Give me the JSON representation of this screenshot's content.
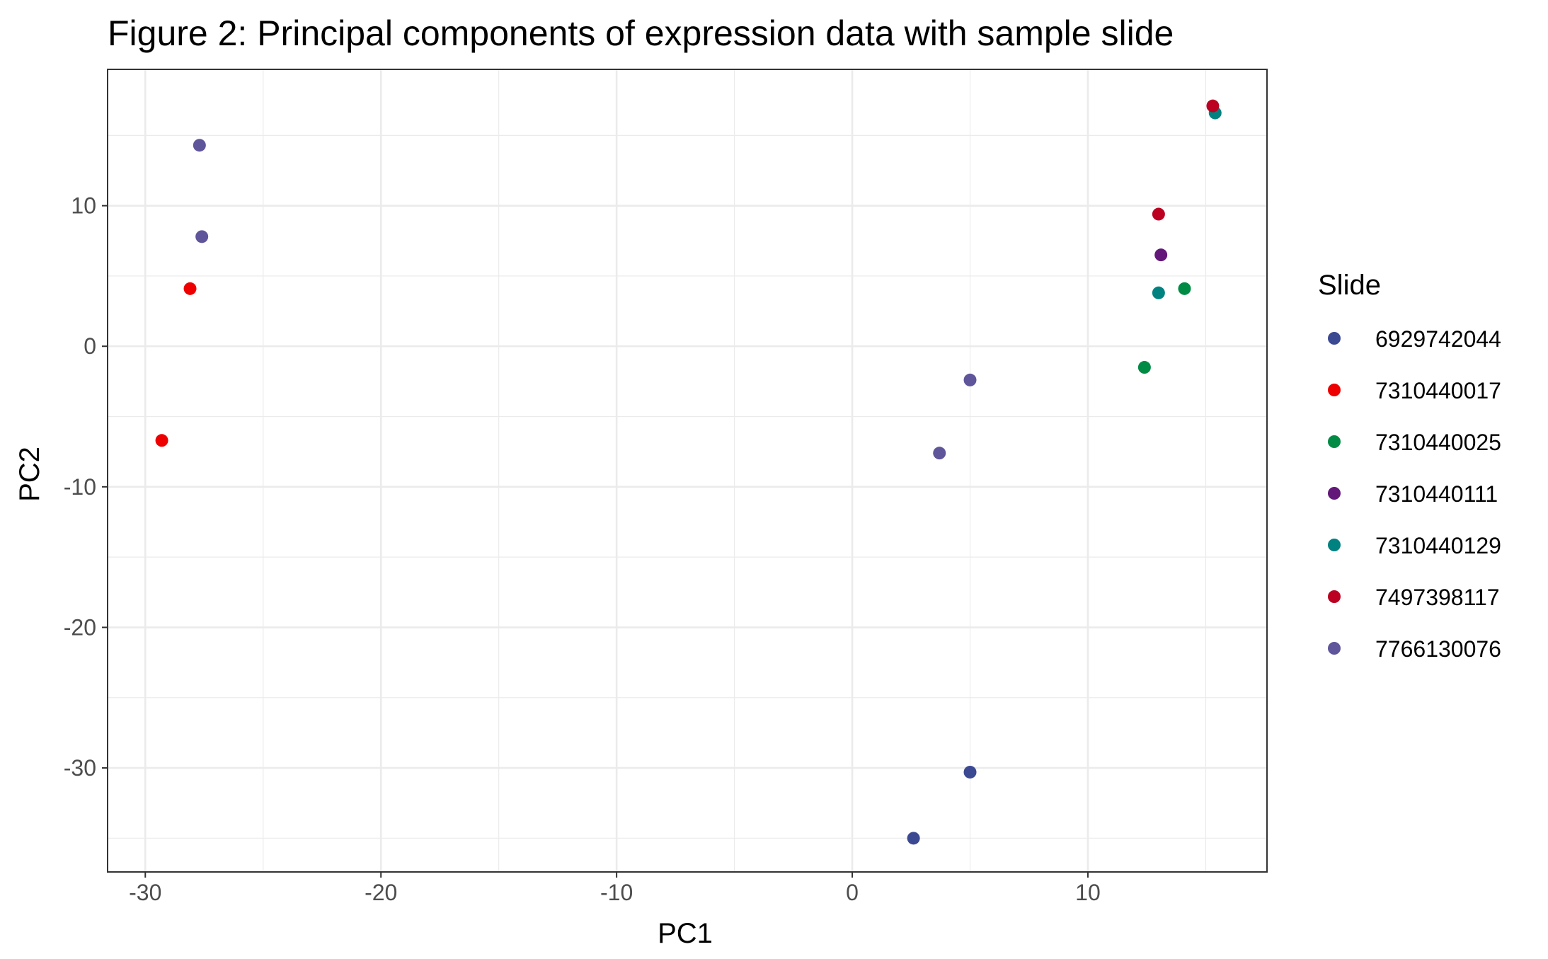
{
  "chart_data": {
    "type": "scatter",
    "title": "Figure 2: Principal components of expression data with sample slide",
    "xlabel": "PC1",
    "ylabel": "PC2",
    "xlim": [
      -31.6,
      17.6
    ],
    "ylim": [
      -37.4,
      19.7
    ],
    "xticks": [
      -30,
      -20,
      -10,
      0,
      10
    ],
    "yticks": [
      -30,
      -20,
      -10,
      0,
      10
    ],
    "grid": true,
    "legend": {
      "title": "Slide",
      "position": "right"
    },
    "series": [
      {
        "name": "6929742044",
        "color": "#3b4992",
        "points": [
          {
            "x": 5.0,
            "y": -30.3
          },
          {
            "x": 2.6,
            "y": -35.0
          }
        ]
      },
      {
        "name": "7310440017",
        "color": "#ee0000",
        "points": [
          {
            "x": -28.1,
            "y": 4.1
          },
          {
            "x": -29.3,
            "y": -6.7
          }
        ]
      },
      {
        "name": "7310440025",
        "color": "#008b45",
        "points": [
          {
            "x": 14.1,
            "y": 4.1
          },
          {
            "x": 12.4,
            "y": -1.5
          }
        ]
      },
      {
        "name": "7310440111",
        "color": "#631879",
        "points": [
          {
            "x": 13.1,
            "y": 6.5
          }
        ]
      },
      {
        "name": "7310440129",
        "color": "#008280",
        "points": [
          {
            "x": 15.4,
            "y": 16.6
          },
          {
            "x": 13.0,
            "y": 3.8
          }
        ]
      },
      {
        "name": "7497398117",
        "color": "#bb0021",
        "points": [
          {
            "x": 15.3,
            "y": 17.1
          },
          {
            "x": 13.0,
            "y": 9.4
          }
        ]
      },
      {
        "name": "7766130076",
        "color": "#5f559b",
        "points": [
          {
            "x": -27.7,
            "y": 14.3
          },
          {
            "x": -27.6,
            "y": 7.8
          },
          {
            "x": 5.0,
            "y": -2.4
          },
          {
            "x": 3.7,
            "y": -7.6
          }
        ]
      }
    ]
  }
}
